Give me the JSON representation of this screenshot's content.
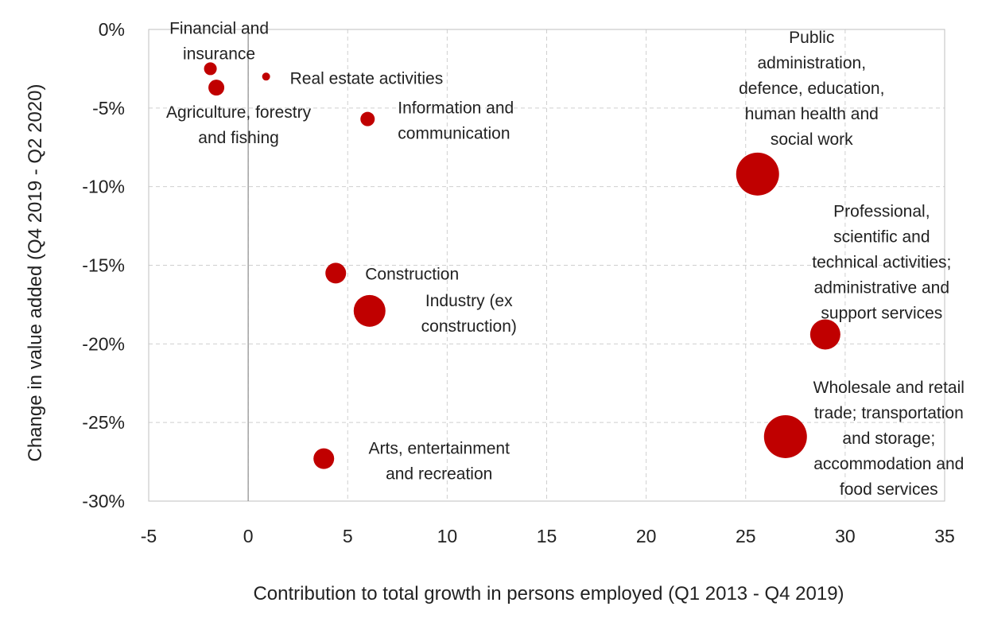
{
  "chart_data": {
    "type": "scatter",
    "title": "",
    "xlabel": "Contribution to total growth in persons employed (Q1 2013 - Q4 2019)",
    "ylabel": "Change in value added (Q4 2019 - Q2 2020)",
    "xlim": [
      -5,
      35
    ],
    "ylim": [
      -30,
      0
    ],
    "x_ticks": [
      -5,
      0,
      5,
      10,
      15,
      20,
      25,
      30,
      35
    ],
    "y_ticks": [
      0,
      -5,
      -10,
      -15,
      -20,
      -25,
      -30
    ],
    "x_tick_labels": [
      "-5",
      "0",
      "5",
      "10",
      "15",
      "20",
      "25",
      "30",
      "35"
    ],
    "y_tick_labels": [
      "0%",
      "-5%",
      "-10%",
      "-15%",
      "-20%",
      "-25%",
      "-30%"
    ],
    "grid": true,
    "marker_color": "#c00000",
    "points": [
      {
        "label_lines": [
          "Financial and",
          "insurance"
        ],
        "x": -1.9,
        "y": -2.5,
        "size": 8
      },
      {
        "label_lines": [
          "Real estate activities"
        ],
        "x": 0.9,
        "y": -3.0,
        "size": 5
      },
      {
        "label_lines": [
          "Agriculture, forestry",
          "and fishing"
        ],
        "x": -1.6,
        "y": -3.7,
        "size": 10
      },
      {
        "label_lines": [
          "Information and",
          "communication"
        ],
        "x": 6.0,
        "y": -5.7,
        "size": 9
      },
      {
        "label_lines": [
          "Public",
          "administration,",
          "defence, education,",
          "human health and",
          "social work"
        ],
        "x": 25.6,
        "y": -9.2,
        "size": 27
      },
      {
        "label_lines": [
          "Construction"
        ],
        "x": 4.4,
        "y": -15.5,
        "size": 13
      },
      {
        "label_lines": [
          "Industry (ex",
          "construction)"
        ],
        "x": 6.1,
        "y": -17.9,
        "size": 20
      },
      {
        "label_lines": [
          "Professional,",
          "scientific and",
          "technical activities;",
          "administrative and",
          "support services"
        ],
        "x": 29.0,
        "y": -19.4,
        "size": 19
      },
      {
        "label_lines": [
          "Wholesale and retail",
          "trade; transportation",
          "and storage;",
          "accommodation and",
          "food services"
        ],
        "x": 27.0,
        "y": -25.9,
        "size": 27
      },
      {
        "label_lines": [
          "Arts, entertainment",
          "and recreation"
        ],
        "x": 3.8,
        "y": -27.3,
        "size": 13
      }
    ]
  }
}
